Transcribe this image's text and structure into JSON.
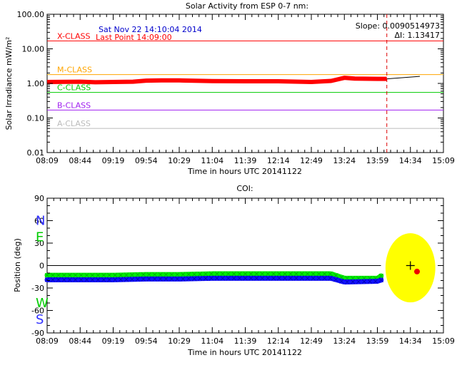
{
  "chart_data": [
    {
      "type": "line",
      "title": "Solar Activity from ESP 0-7 nm:",
      "xlabel": "Time in hours UTC 20141122",
      "ylabel": "Solar Irradiance mW/m²",
      "yscale": "log",
      "ylim": [
        0.01,
        100
      ],
      "xlim": [
        "08:09",
        "15:09"
      ],
      "x_ticks": [
        "08:09",
        "08:44",
        "09:19",
        "09:54",
        "10:29",
        "11:04",
        "11:39",
        "12:14",
        "12:49",
        "13:24",
        "13:59",
        "14:34",
        "15:09"
      ],
      "y_ticks": [
        "0.01",
        "0.10",
        "1.00",
        "10.00",
        "100.00"
      ],
      "annotations": {
        "date": "Sat Nov 22 14:10:04 2014",
        "last_point": "Last Point   14:09:00",
        "slope": "Slope: 0.0090514973",
        "delta": "ΔI: 1.13417"
      },
      "class_lines": [
        {
          "label": "X-CLASS",
          "value": 17.0,
          "color": "#ff0000"
        },
        {
          "label": "M-CLASS",
          "value": 1.8,
          "color": "#ffa500"
        },
        {
          "label": "C-CLASS",
          "value": 0.55,
          "color": "#00cc00"
        },
        {
          "label": "B-CLASS",
          "value": 0.17,
          "color": "#a020f0"
        },
        {
          "label": "A-CLASS",
          "value": 0.05,
          "color": "#bbbbbb"
        }
      ],
      "series": [
        {
          "color": "#ff0000",
          "x": [
            "08:09",
            "08:44",
            "09:00",
            "09:19",
            "09:40",
            "09:54",
            "10:10",
            "10:29",
            "11:04",
            "11:39",
            "12:14",
            "12:49",
            "13:10",
            "13:24",
            "13:35",
            "13:59",
            "14:09"
          ],
          "values": [
            1.1,
            1.12,
            1.08,
            1.1,
            1.12,
            1.2,
            1.22,
            1.22,
            1.17,
            1.15,
            1.15,
            1.1,
            1.18,
            1.45,
            1.38,
            1.35,
            1.35
          ]
        },
        {
          "color": "#000000",
          "x": [
            "14:09",
            "14:44"
          ],
          "values": [
            1.35,
            1.6
          ]
        }
      ],
      "current_time": "14:09"
    },
    {
      "type": "scatter",
      "title": "COI:",
      "xlabel": "Time in hours UTC 20141122",
      "ylabel": "Position (deg)",
      "ylim": [
        -90,
        90
      ],
      "xlim": [
        "08:09",
        "15:09"
      ],
      "x_ticks": [
        "08:09",
        "08:44",
        "09:19",
        "09:54",
        "10:29",
        "11:04",
        "11:39",
        "12:14",
        "12:49",
        "13:24",
        "13:59",
        "14:34",
        "15:09"
      ],
      "y_ticks": [
        "-90",
        "-60",
        "-30",
        "0",
        "30",
        "60",
        "90"
      ],
      "direction_labels": [
        {
          "text": "N",
          "color": "#3030ff"
        },
        {
          "text": "E",
          "color": "#00cc00"
        },
        {
          "text": "W",
          "color": "#00cc00"
        },
        {
          "text": "S",
          "color": "#3030ff"
        }
      ],
      "series": [
        {
          "color": "#00ee00",
          "x_start": "08:09",
          "x_end": "14:04",
          "values_by_time": [
            [
              "08:09",
              -13
            ],
            [
              "09:19",
              -13
            ],
            [
              "09:54",
              -12
            ],
            [
              "10:29",
              -12
            ],
            [
              "11:04",
              -11
            ],
            [
              "11:39",
              -11
            ],
            [
              "12:14",
              -11
            ],
            [
              "12:49",
              -11
            ],
            [
              "13:10",
              -11
            ],
            [
              "13:24",
              -17
            ],
            [
              "13:59",
              -17
            ],
            [
              "14:04",
              -13
            ]
          ]
        },
        {
          "color": "#1010ff",
          "x_start": "08:09",
          "x_end": "14:04",
          "values_by_time": [
            [
              "08:09",
              -19
            ],
            [
              "09:19",
              -19
            ],
            [
              "09:54",
              -18
            ],
            [
              "10:29",
              -18
            ],
            [
              "11:04",
              -17
            ],
            [
              "11:39",
              -17
            ],
            [
              "12:14",
              -17
            ],
            [
              "12:49",
              -17
            ],
            [
              "13:10",
              -17
            ],
            [
              "13:24",
              -22
            ],
            [
              "13:59",
              -21
            ],
            [
              "14:04",
              -19
            ]
          ]
        }
      ],
      "zero_line": 0,
      "target": {
        "x": "14:34",
        "y": 0,
        "marker": "+"
      },
      "current_point": {
        "x": "14:41",
        "y": -8,
        "color": "#ee0000"
      },
      "ellipse": {
        "center_x": "14:34",
        "center_y": -3,
        "rx_minutes": 11,
        "ry_deg": 33,
        "color": "#ffff00"
      }
    }
  ]
}
